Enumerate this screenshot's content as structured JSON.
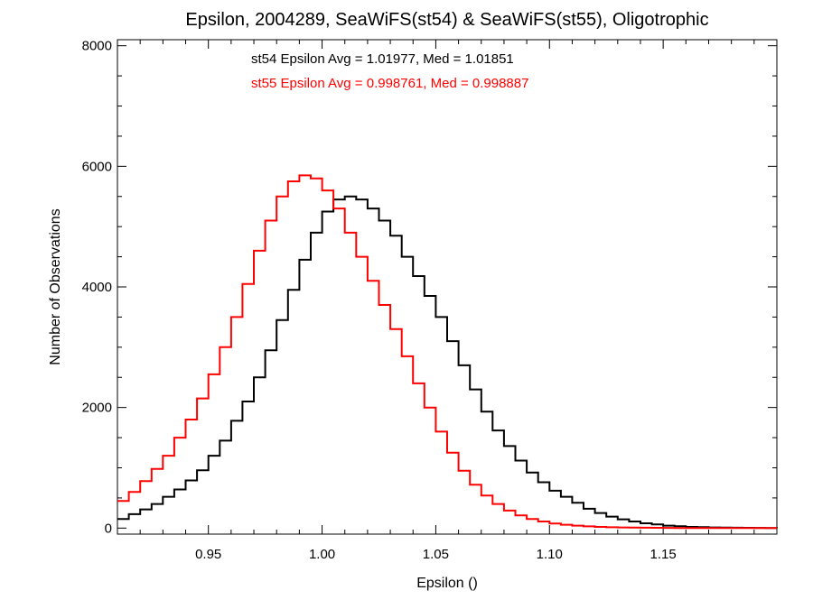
{
  "chart_data": {
    "type": "line",
    "title": "Epsilon, 2004289, SeaWiFS(st54) & SeaWiFS(st55), Oligotrophic",
    "xlabel": "Epsilon ()",
    "ylabel": "Number of Observations",
    "xlim": [
      0.91,
      1.2
    ],
    "ylim": [
      -100,
      8100
    ],
    "x_ticks": [
      0.95,
      1.0,
      1.05,
      1.1,
      1.15
    ],
    "x_tick_labels": [
      "0.95",
      "1.00",
      "1.05",
      "1.10",
      "1.15"
    ],
    "y_ticks": [
      0,
      2000,
      4000,
      6000,
      8000
    ],
    "y_tick_labels": [
      "0",
      "2000",
      "4000",
      "6000",
      "8000"
    ],
    "grid": false,
    "line_style": "step",
    "annotations": [
      {
        "text": "st54 Epsilon Avg = 1.01977, Med = 1.01851",
        "color": "#000000"
      },
      {
        "text": "st55 Epsilon Avg = 0.998761, Med = 0.998887",
        "color": "#ff0000"
      }
    ],
    "series": [
      {
        "color": "#000000",
        "x": [
          0.91,
          0.915,
          0.92,
          0.925,
          0.93,
          0.935,
          0.94,
          0.945,
          0.95,
          0.955,
          0.96,
          0.965,
          0.97,
          0.975,
          0.98,
          0.985,
          0.99,
          0.995,
          1.0,
          1.005,
          1.01,
          1.015,
          1.02,
          1.025,
          1.03,
          1.035,
          1.04,
          1.045,
          1.05,
          1.055,
          1.06,
          1.065,
          1.07,
          1.075,
          1.08,
          1.085,
          1.09,
          1.095,
          1.1,
          1.105,
          1.11,
          1.115,
          1.12,
          1.125,
          1.13,
          1.135,
          1.14,
          1.145,
          1.15,
          1.155,
          1.16,
          1.165,
          1.17,
          1.175,
          1.18,
          1.185,
          1.19,
          1.195,
          1.2
        ],
        "values": [
          150,
          230,
          310,
          400,
          520,
          640,
          790,
          960,
          1200,
          1450,
          1780,
          2100,
          2500,
          2950,
          3450,
          3950,
          4450,
          4900,
          5250,
          5450,
          5500,
          5450,
          5300,
          5100,
          4850,
          4500,
          4180,
          3850,
          3500,
          3100,
          2700,
          2300,
          1930,
          1620,
          1360,
          1120,
          920,
          760,
          620,
          520,
          420,
          320,
          250,
          190,
          145,
          110,
          80,
          60,
          40,
          30,
          20,
          15,
          10,
          8,
          6,
          4,
          3,
          2,
          0
        ]
      },
      {
        "color": "#ff0000",
        "x": [
          0.91,
          0.915,
          0.92,
          0.925,
          0.93,
          0.935,
          0.94,
          0.945,
          0.95,
          0.955,
          0.96,
          0.965,
          0.97,
          0.975,
          0.98,
          0.985,
          0.99,
          0.995,
          1.0,
          1.005,
          1.01,
          1.015,
          1.02,
          1.025,
          1.03,
          1.035,
          1.04,
          1.045,
          1.05,
          1.055,
          1.06,
          1.065,
          1.07,
          1.075,
          1.08,
          1.085,
          1.09,
          1.095,
          1.1,
          1.105,
          1.11,
          1.115,
          1.12,
          1.125,
          1.13,
          1.135,
          1.14,
          1.145,
          1.15,
          1.155,
          1.16,
          1.165,
          1.17,
          1.175,
          1.18,
          1.185,
          1.19,
          1.195,
          1.2
        ],
        "values": [
          450,
          600,
          780,
          980,
          1200,
          1500,
          1800,
          2150,
          2550,
          3000,
          3500,
          4050,
          4600,
          5100,
          5500,
          5750,
          5850,
          5800,
          5600,
          5300,
          4900,
          4500,
          4100,
          3700,
          3300,
          2850,
          2400,
          2000,
          1600,
          1250,
          950,
          720,
          540,
          400,
          290,
          210,
          150,
          110,
          75,
          55,
          40,
          28,
          20,
          14,
          10,
          8,
          6,
          4,
          3,
          2,
          2,
          1,
          1,
          1,
          0,
          0,
          0,
          0,
          0
        ]
      }
    ]
  }
}
